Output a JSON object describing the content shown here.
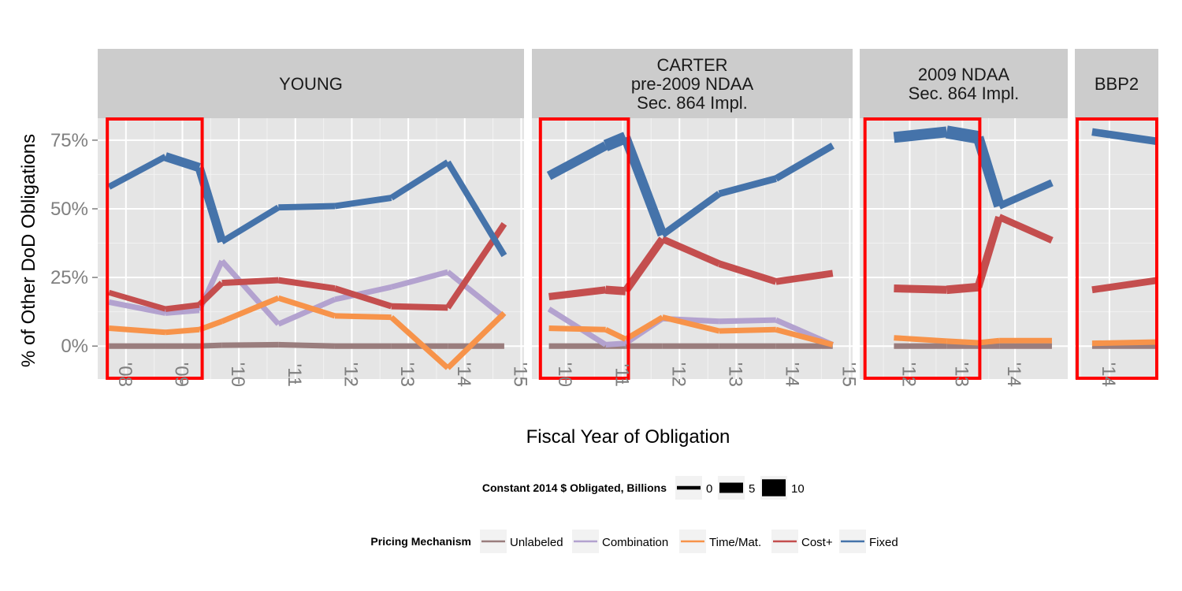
{
  "chart_data": {
    "type": "line",
    "ylabel": "% of  Other DoD  Obligations",
    "xlabel": "Fiscal Year of Obligation",
    "ylim": [
      -12,
      83
    ],
    "y_ticks": [
      {
        "value": 0,
        "label": "0%"
      },
      {
        "value": 25,
        "label": "25%"
      },
      {
        "value": 50,
        "label": "50%"
      },
      {
        "value": 75,
        "label": "75%"
      }
    ],
    "grid": true,
    "legend_position": "bottom",
    "size_legend": {
      "title": "Constant 2014 $ Obligated, Billions",
      "entries": [
        {
          "label": "0",
          "value": 0
        },
        {
          "label": "5",
          "value": 5
        },
        {
          "label": "10",
          "value": 10
        }
      ]
    },
    "color_legend": {
      "title": "Pricing Mechanism",
      "entries": [
        {
          "label": "Unlabeled",
          "color": "#9A7D7D"
        },
        {
          "label": "Combination",
          "color": "#B3A2CF"
        },
        {
          "label": "Time/Mat.",
          "color": "#F7934A"
        },
        {
          "label": "Cost+",
          "color": "#C44E4E"
        },
        {
          "label": "Fixed",
          "color": "#4573AA"
        }
      ]
    },
    "panels": [
      {
        "strip_lines": [
          "YOUNG"
        ],
        "xlim": [
          2007.5,
          2015.05
        ],
        "x_ticks": [
          {
            "value": 2008,
            "label": "'08"
          },
          {
            "value": 2009,
            "label": "'09"
          },
          {
            "value": 2010,
            "label": "'10"
          },
          {
            "value": 2011,
            "label": "'11"
          },
          {
            "value": 2012,
            "label": "'12"
          },
          {
            "value": 2013,
            "label": "'13"
          },
          {
            "value": 2014,
            "label": "'14"
          },
          {
            "value": 2015,
            "label": "'15"
          }
        ],
        "highlight_box": {
          "x_from": 2007.67,
          "x_to": 2009.35
        },
        "x": [
          2007.7,
          2008.7,
          2009.3,
          2009.7,
          2010.7,
          2011.7,
          2012.7,
          2013.7,
          2014.7
        ],
        "series": [
          {
            "name": "Fixed",
            "values": [
              58,
              69,
              65,
              38,
              50.5,
              51,
              54,
              67,
              33
            ],
            "amounts": [
              1.5,
              2.5,
              6,
              2,
              2,
              2,
              2,
              2,
              2
            ]
          },
          {
            "name": "Cost+",
            "values": [
              19.5,
              13.5,
              15,
              23,
              24,
              21,
              14.5,
              14,
              44.5
            ],
            "amounts": [
              1.5,
              1.5,
              2,
              2,
              2,
              2,
              2,
              2,
              2
            ]
          },
          {
            "name": "Combination",
            "values": [
              16,
              12,
              13,
              31,
              8,
              17,
              21.5,
              27,
              10.5
            ],
            "amounts": [
              1.5,
              1.5,
              1.5,
              1.5,
              1.5,
              1.5,
              1.5,
              1.5,
              1.5
            ]
          },
          {
            "name": "Time/Mat.",
            "values": [
              6.5,
              5,
              6,
              9,
              17.5,
              11,
              10.5,
              -8,
              12
            ],
            "amounts": [
              1.5,
              1.5,
              1.5,
              1.5,
              1.5,
              1.5,
              1.5,
              1.5,
              1.5
            ]
          },
          {
            "name": "Unlabeled",
            "values": [
              0,
              0,
              0,
              0.3,
              0.5,
              0,
              0,
              0,
              0
            ],
            "amounts": [
              1.5,
              1.5,
              1.5,
              1.5,
              1.5,
              1.5,
              1.5,
              1.5,
              1.5
            ]
          }
        ]
      },
      {
        "strip_lines": [
          "CARTER",
          "pre-2009 NDAA",
          "Sec. 864 Impl."
        ],
        "xlim": [
          2009.4,
          2015.05
        ],
        "x_ticks": [
          {
            "value": 2010,
            "label": "'10"
          },
          {
            "value": 2011,
            "label": "'11"
          },
          {
            "value": 2012,
            "label": "'12"
          },
          {
            "value": 2013,
            "label": "'13"
          },
          {
            "value": 2014,
            "label": "'14"
          },
          {
            "value": 2015,
            "label": "'15"
          }
        ],
        "highlight_box": {
          "x_from": 2009.55,
          "x_to": 2011.1
        },
        "x": [
          2009.7,
          2010.7,
          2011.05,
          2011.7,
          2012.7,
          2013.7,
          2014.7
        ],
        "series": [
          {
            "name": "Fixed",
            "values": [
              62,
              73,
              76,
              40.5,
              55.5,
              61,
              73
            ],
            "amounts": [
              3,
              5.5,
              7,
              2.5,
              2.5,
              2.5,
              2.5
            ]
          },
          {
            "name": "Cost+",
            "values": [
              18,
              20.5,
              20,
              39,
              30,
              23.5,
              26.5
            ],
            "amounts": [
              2.5,
              3,
              4,
              2.5,
              2.5,
              2.5,
              2.5
            ]
          },
          {
            "name": "Combination",
            "values": [
              13.5,
              0.5,
              1,
              10,
              9,
              9.5,
              0.5
            ],
            "amounts": [
              1.5,
              1.5,
              1.5,
              1.5,
              1.5,
              1.5,
              1.5
            ]
          },
          {
            "name": "Time/Mat.",
            "values": [
              6.5,
              6,
              2.5,
              10.5,
              5.5,
              6,
              0.5
            ],
            "amounts": [
              1.5,
              1.5,
              1.5,
              1.5,
              1.5,
              1.5,
              1.5
            ]
          },
          {
            "name": "Unlabeled",
            "values": [
              0,
              0,
              0,
              0,
              0,
              0,
              0
            ],
            "amounts": [
              1.5,
              1.5,
              1.5,
              1.5,
              1.5,
              1.5,
              1.5
            ]
          }
        ]
      },
      {
        "strip_lines": [
          "2009 NDAA",
          "Sec. 864 Impl."
        ],
        "xlim": [
          2011.05,
          2015.0
        ],
        "x_ticks": [
          {
            "value": 2012,
            "label": "'12"
          },
          {
            "value": 2013,
            "label": "'13"
          },
          {
            "value": 2014,
            "label": "'14"
          }
        ],
        "highlight_box": {
          "x_from": 2011.15,
          "x_to": 2013.33
        },
        "x": [
          2011.7,
          2012.7,
          2013.3,
          2013.7,
          2014.7
        ],
        "series": [
          {
            "name": "Fixed",
            "values": [
              76,
              78,
              76,
              51,
              59.5
            ],
            "amounts": [
              5,
              6,
              8,
              3,
              2.5
            ]
          },
          {
            "name": "Cost+",
            "values": [
              21,
              20.5,
              21.5,
              47,
              38.5
            ],
            "amounts": [
              3,
              3.5,
              4,
              2.5,
              2.5
            ]
          },
          {
            "name": "Time/Mat.",
            "values": [
              3,
              1.8,
              1.2,
              2,
              2
            ],
            "amounts": [
              1.5,
              1.5,
              1.5,
              1.5,
              1.5
            ]
          },
          {
            "name": "Unlabeled",
            "values": [
              0,
              0,
              0,
              0,
              0
            ],
            "amounts": [
              1.5,
              1.5,
              1.5,
              1.5,
              1.5
            ]
          }
        ]
      },
      {
        "strip_lines": [
          "BBP2"
        ],
        "xlim": [
          2013.4,
          2014.85
        ],
        "x_ticks": [
          {
            "value": 2014,
            "label": "'14"
          }
        ],
        "highlight_box": {
          "x_from": 2013.44,
          "x_to": 2014.85
        },
        "x": [
          2013.7,
          2014.85
        ],
        "series": [
          {
            "name": "Fixed",
            "values": [
              78,
              74.5
            ],
            "amounts": [
              3,
              3
            ]
          },
          {
            "name": "Cost+",
            "values": [
              20.5,
              24
            ],
            "amounts": [
              2.5,
              2.5
            ]
          },
          {
            "name": "Time/Mat.",
            "values": [
              1,
              1.5
            ],
            "amounts": [
              1.5,
              1.5
            ]
          },
          {
            "name": "Unlabeled",
            "values": [
              0,
              0
            ],
            "amounts": [
              1.5,
              1.5
            ]
          }
        ]
      }
    ]
  }
}
